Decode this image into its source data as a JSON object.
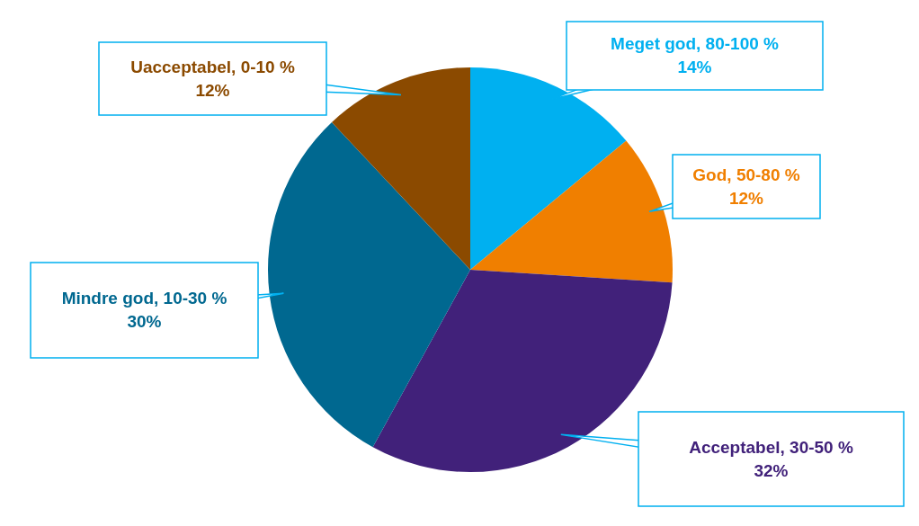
{
  "chart_data": {
    "type": "pie",
    "categories": [
      "Meget god, 80-100 %",
      "God, 50-80 %",
      "Acceptabel, 30-50 %",
      "Mindre god, 10-30 %",
      "Uacceptabel, 0-10 %"
    ],
    "values": [
      14,
      12,
      32,
      30,
      12
    ],
    "colors": [
      "#00b0f0",
      "#f07f00",
      "#41217a",
      "#006890",
      "#8b4a00"
    ],
    "value_labels": [
      "14%",
      "12%",
      "32%",
      "30%",
      "12%"
    ],
    "legend": false
  }
}
